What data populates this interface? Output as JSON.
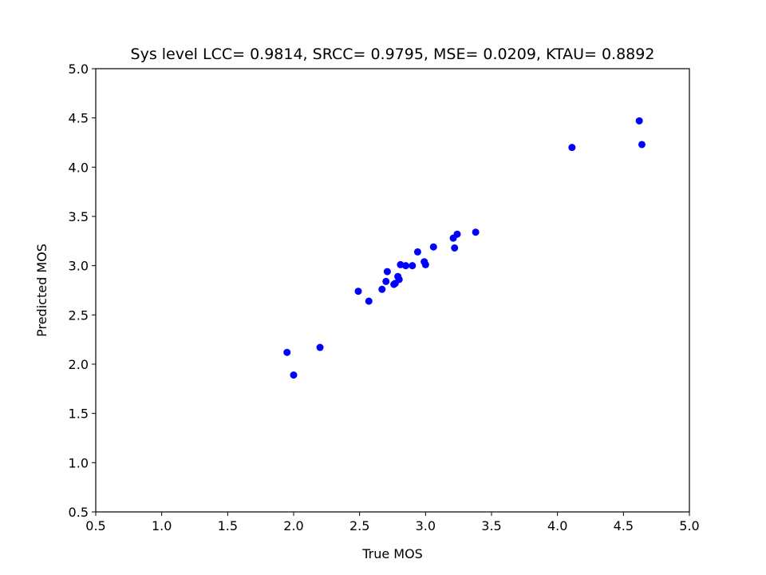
{
  "chart_data": {
    "type": "scatter",
    "title": "Sys level LCC= 0.9814, SRCC= 0.9795, MSE= 0.0209, KTAU= 0.8892",
    "xlabel": "True MOS",
    "ylabel": "Predicted MOS",
    "xlim": [
      0.5,
      5.0
    ],
    "ylim": [
      0.5,
      5.0
    ],
    "xticks": [
      "0.5",
      "1.0",
      "1.5",
      "2.0",
      "2.5",
      "3.0",
      "3.5",
      "4.0",
      "4.5",
      "5.0"
    ],
    "yticks": [
      "0.5",
      "1.0",
      "1.5",
      "2.0",
      "2.5",
      "3.0",
      "3.5",
      "4.0",
      "4.5",
      "5.0"
    ],
    "grid": false,
    "point_color": "#0000ff",
    "series": [
      {
        "x": [
          1.95,
          2.0,
          2.2,
          2.49,
          2.57,
          2.67,
          2.7,
          2.71,
          2.76,
          2.77,
          2.79,
          2.8,
          2.81,
          2.85,
          2.9,
          2.94,
          2.99,
          3.0,
          3.06,
          3.21,
          3.22,
          3.24,
          3.38,
          4.11,
          4.62,
          4.64
        ],
        "y": [
          2.12,
          1.89,
          2.17,
          2.74,
          2.64,
          2.76,
          2.84,
          2.94,
          2.81,
          2.82,
          2.89,
          2.86,
          3.01,
          3.0,
          3.0,
          3.14,
          3.04,
          3.01,
          3.19,
          3.28,
          3.18,
          3.32,
          3.34,
          4.2,
          4.47,
          4.23
        ]
      }
    ]
  }
}
